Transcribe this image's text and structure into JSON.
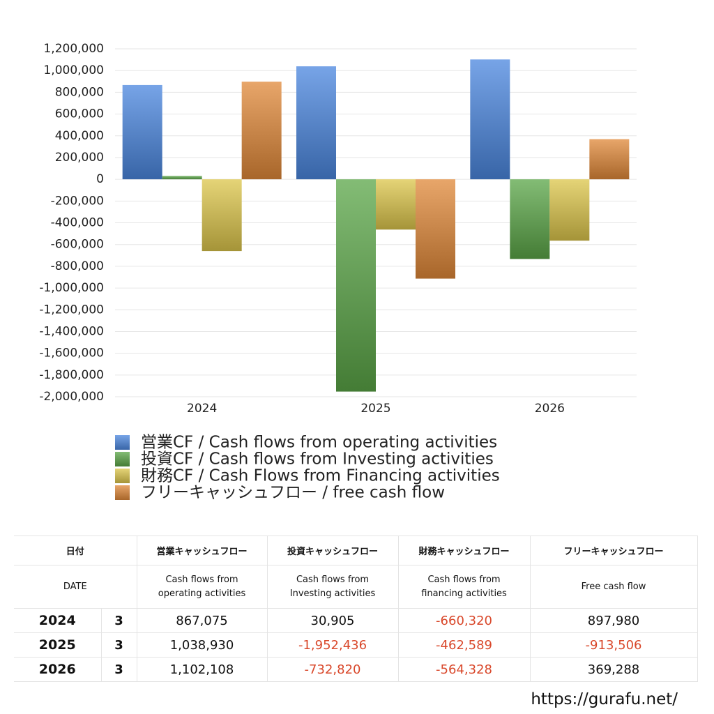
{
  "chart_data": {
    "type": "bar",
    "categories": [
      "2024",
      "2025",
      "2026"
    ],
    "series": [
      {
        "name": "営業CF / Cash flows from operating activities",
        "color": "#4a86df",
        "values": [
          867075,
          1038930,
          1102108
        ]
      },
      {
        "name": "投資CF / Cash flows from Investing activities",
        "color": "#5aa547",
        "values": [
          30905,
          -1952436,
          -732820
        ]
      },
      {
        "name": "財務CF / Cash Flows from Financing activities",
        "color": "#dcc54a",
        "values": [
          -660320,
          -462589,
          -564328
        ]
      },
      {
        "name": "フリーキャッシュフロー / free cash flow",
        "color": "#e08838",
        "values": [
          897980,
          -913506,
          369288
        ]
      }
    ],
    "ylim": [
      -2000000,
      1200000
    ],
    "yticks": [
      {
        "value": 1200000,
        "label": "1,200,000"
      },
      {
        "value": 1000000,
        "label": "1,000,000"
      },
      {
        "value": 800000,
        "label": "800,000"
      },
      {
        "value": 600000,
        "label": "600,000"
      },
      {
        "value": 400000,
        "label": "400,000"
      },
      {
        "value": 200000,
        "label": "200,000"
      },
      0,
      {
        "value": -200000,
        "label": "-200,000"
      },
      {
        "value": -400000,
        "label": "-400,000"
      },
      {
        "value": -600000,
        "label": "-600,000"
      },
      {
        "value": -800000,
        "label": "-800,000"
      },
      {
        "value": -1000000,
        "label": "-1,000,000"
      },
      {
        "value": -1200000,
        "label": "-1,200,000"
      },
      {
        "value": -1400000,
        "label": "-1,400,000"
      },
      {
        "value": -1600000,
        "label": "-1,600,000"
      },
      {
        "value": -1800000,
        "label": "-1,800,000"
      },
      {
        "value": -2000000,
        "label": "-2,000,000"
      }
    ],
    "grid": true
  },
  "table": {
    "header": [
      [
        "日付",
        "営業キャッシュフロー",
        "投資キャッシュフロー",
        "財務キャッシュフロー",
        "フリーキャッシュフロー"
      ],
      [
        "DATE",
        "Cash flows from operating activities",
        "Cash flows from Investing activities",
        "Cash flows from financing activities",
        "Free cash flow"
      ]
    ],
    "rows": [
      [
        "2024",
        "3",
        "867,075",
        "30,905",
        "-660,320",
        "897,980"
      ],
      [
        "2025",
        "3",
        "1,038,930",
        "-1,952,436",
        "-462,589",
        "-913,506"
      ],
      [
        "2026",
        "3",
        "1,102,108",
        "-732,820",
        "-564,328",
        "369,288"
      ]
    ]
  },
  "footer": {
    "url": "https://gurafu.net/"
  }
}
